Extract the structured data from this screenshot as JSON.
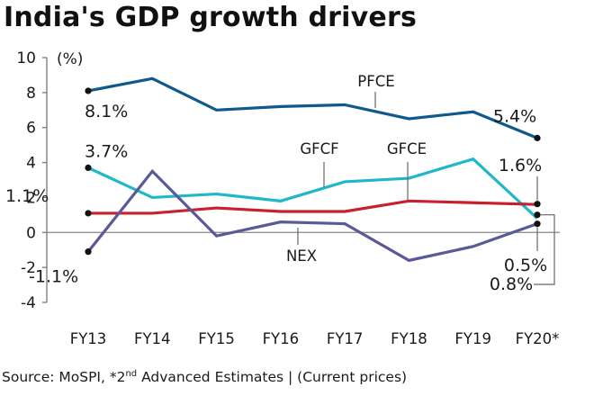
{
  "chart_data": {
    "type": "line",
    "title": "India's GDP growth drivers",
    "ylabel": "(%)",
    "xlabel": "",
    "ylim": [
      -4,
      10
    ],
    "yticks": [
      10,
      8,
      6,
      4,
      2,
      0,
      -2,
      -4
    ],
    "grid": false,
    "categories": [
      "FY13",
      "FY14",
      "FY15",
      "FY16",
      "FY17",
      "FY18",
      "FY19",
      "FY20*"
    ],
    "series": [
      {
        "name": "PFCE",
        "color": "#0f5a8a",
        "values": [
          8.1,
          8.8,
          7.0,
          7.2,
          7.3,
          6.5,
          6.9,
          5.4
        ]
      },
      {
        "name": "GFCF",
        "color": "#1fb8c9",
        "values": [
          3.7,
          2.0,
          2.2,
          1.8,
          2.9,
          3.1,
          4.2,
          0.8
        ]
      },
      {
        "name": "GFCE",
        "color": "#c8202f",
        "values": [
          1.1,
          1.1,
          1.4,
          1.2,
          1.2,
          1.8,
          1.7,
          1.6
        ]
      },
      {
        "name": "NEX",
        "color": "#5a5a96",
        "values": [
          -1.1,
          3.5,
          -0.2,
          0.6,
          0.5,
          -1.6,
          -0.8,
          0.5
        ]
      }
    ],
    "annotations": {
      "start": [
        {
          "series": "PFCE",
          "text": "8.1%"
        },
        {
          "series": "GFCF",
          "text": "3.7%"
        },
        {
          "series": "GFCE",
          "text": "1.1%"
        },
        {
          "series": "NEX",
          "text": "-1.1%"
        }
      ],
      "end": [
        {
          "series": "PFCE",
          "text": "5.4%"
        },
        {
          "series": "GFCE",
          "text": "1.6%"
        },
        {
          "series": "NEX",
          "text": "0.5%"
        },
        {
          "series": "GFCF",
          "text": "0.8%"
        }
      ]
    },
    "source": "Source: MoSPI, *2",
    "source_sup": "nd",
    "source_rest": " Advanced Estimates | (Current prices)"
  }
}
